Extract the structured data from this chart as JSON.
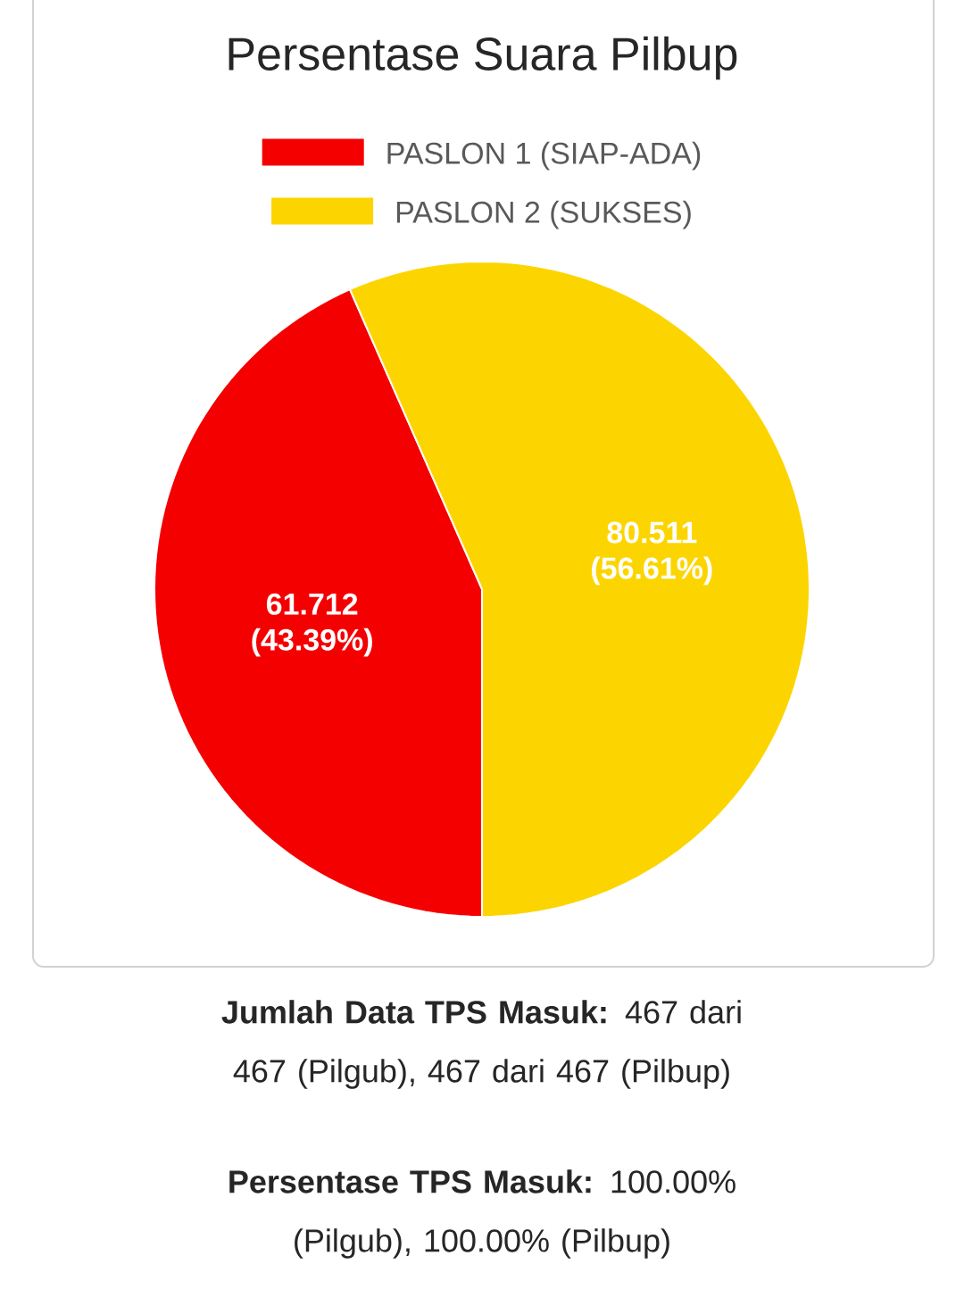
{
  "chart_data": {
    "type": "pie",
    "title": "Persentase Suara Pilbup",
    "categories": [
      "PASLON 1 (SIAP-ADA)",
      "PASLON 2 (SUKSES)"
    ],
    "values": [
      61.712,
      80.511
    ],
    "value_labels": [
      "61.712 (43.39%)",
      "80.511 (56.61%)"
    ],
    "colors": [
      "#f50000",
      "#fcd500"
    ],
    "legend": "top",
    "annotations": [
      "**Jumlah Data TPS Masuk:** 467 dari 467 (Pilgub), 467 dari 467 (Pilbup)",
      "**Persentase TPS Masuk:** 100.00% (Pilgub), 100.00% (Pilbup)"
    ]
  }
}
